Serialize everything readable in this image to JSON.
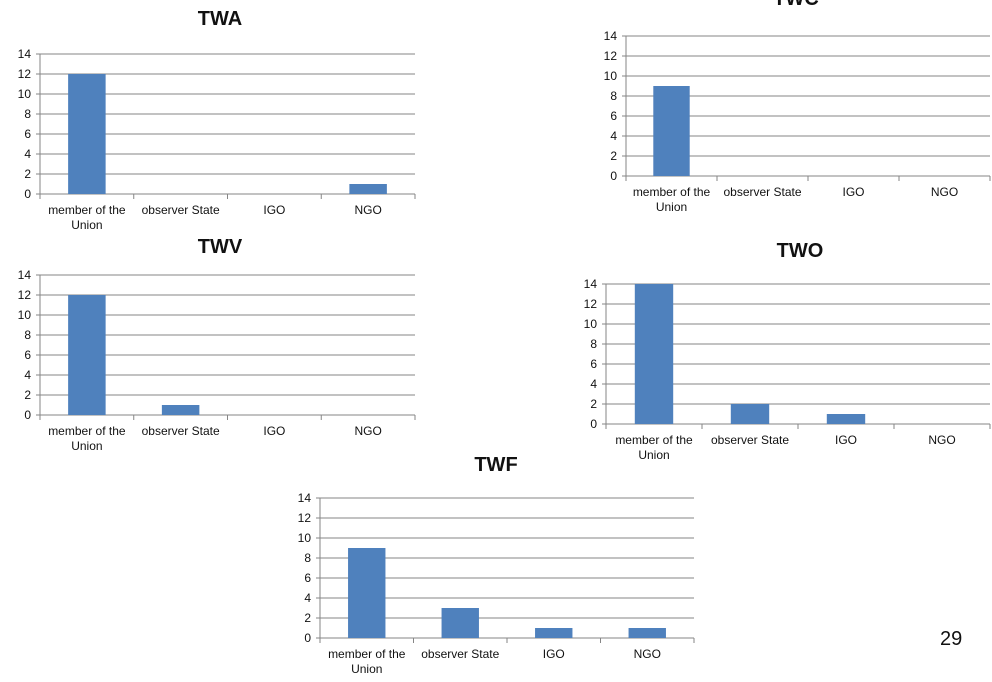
{
  "page": {
    "number": "29"
  },
  "colors": {
    "bar": "#4f81bd",
    "grid": "#868686",
    "axis": "#868686",
    "text": "#111111"
  },
  "chart_data": [
    {
      "type": "bar",
      "title": "TWA",
      "categories": [
        "member of the Union",
        "observer State",
        "IGO",
        "NGO"
      ],
      "values": [
        12,
        0,
        0,
        1
      ],
      "ylim": [
        0,
        14
      ],
      "yticks": [
        "0",
        "2",
        "4",
        "6",
        "8",
        "10",
        "12",
        "14"
      ],
      "grid": true,
      "legend": "none"
    },
    {
      "type": "bar",
      "title": "TWC",
      "categories": [
        "member of the Union",
        "observer State",
        "IGO",
        "NGO"
      ],
      "values": [
        9,
        0,
        0,
        0
      ],
      "ylim": [
        0,
        14
      ],
      "yticks": [
        "0",
        "2",
        "4",
        "6",
        "8",
        "10",
        "12",
        "14"
      ],
      "grid": true,
      "legend": "none"
    },
    {
      "type": "bar",
      "title": "TWV",
      "categories": [
        "member of the Union",
        "observer State",
        "IGO",
        "NGO"
      ],
      "values": [
        12,
        1,
        0,
        0
      ],
      "ylim": [
        0,
        14
      ],
      "yticks": [
        "0",
        "2",
        "4",
        "6",
        "8",
        "10",
        "12",
        "14"
      ],
      "grid": true,
      "legend": "none"
    },
    {
      "type": "bar",
      "title": "TWO",
      "categories": [
        "member of the Union",
        "observer State",
        "IGO",
        "NGO"
      ],
      "values": [
        14,
        2,
        1,
        0
      ],
      "ylim": [
        0,
        14
      ],
      "yticks": [
        "0",
        "2",
        "4",
        "6",
        "8",
        "10",
        "12",
        "14"
      ],
      "grid": true,
      "legend": "none"
    },
    {
      "type": "bar",
      "title": "TWF",
      "categories": [
        "member of the Union",
        "observer State",
        "IGO",
        "NGO"
      ],
      "values": [
        9,
        3,
        1,
        1
      ],
      "ylim": [
        0,
        14
      ],
      "yticks": [
        "0",
        "2",
        "4",
        "6",
        "8",
        "10",
        "12",
        "14"
      ],
      "grid": true,
      "legend": "none"
    }
  ]
}
